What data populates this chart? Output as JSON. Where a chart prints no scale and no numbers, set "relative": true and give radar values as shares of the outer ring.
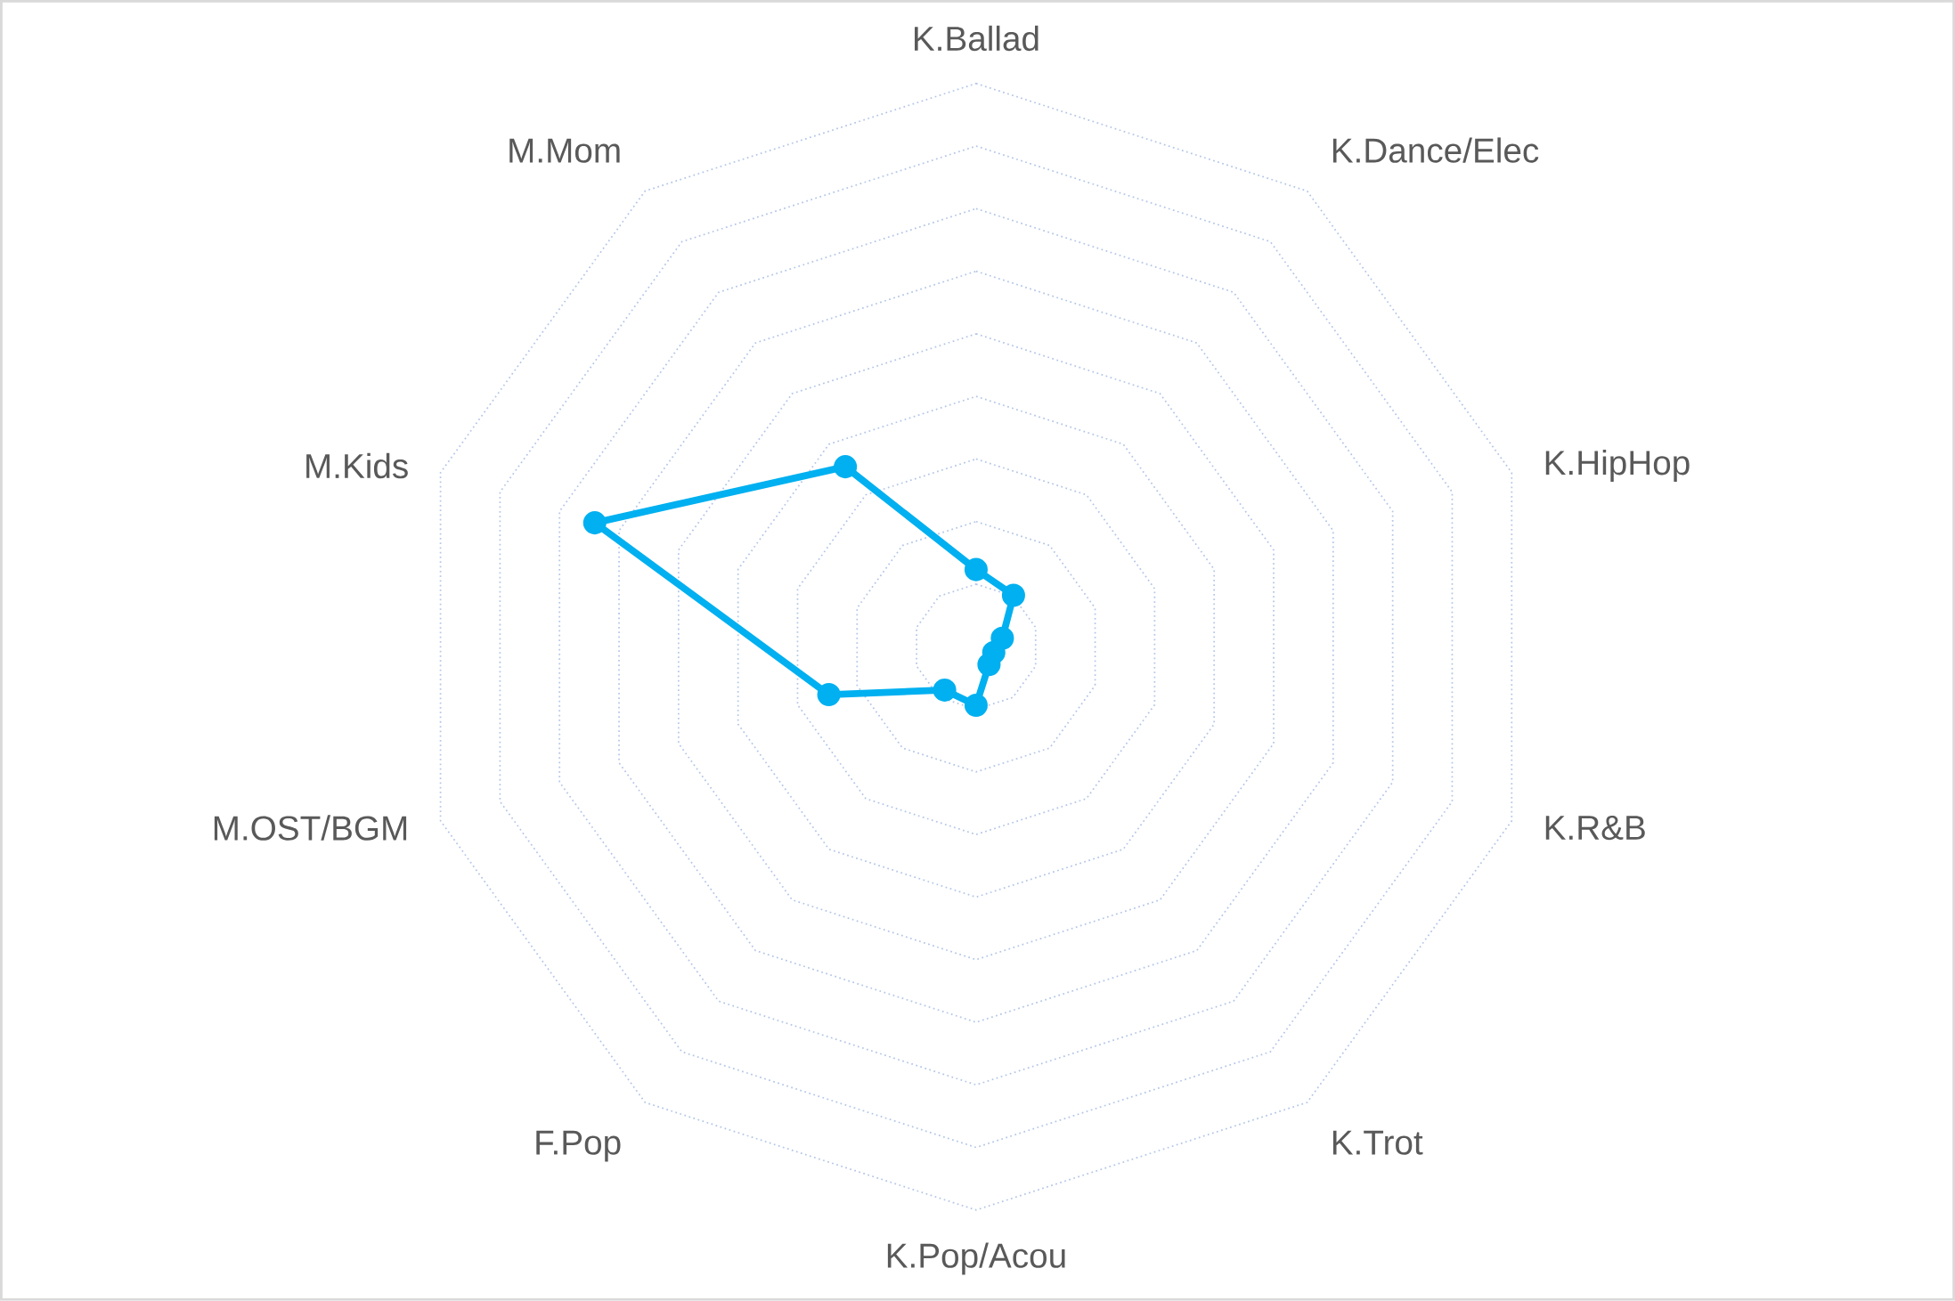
{
  "chart_data": {
    "type": "radar",
    "relative": true,
    "grid": true,
    "marker": "circle",
    "line_style": "solid",
    "categories": [
      "K.Ballad",
      "K.Dance/Elec",
      "K.HipHop",
      "K.R&B",
      "K.Trot",
      "K.Pop/Acou",
      "F.Pop",
      "M.OST/BGM",
      "M.Kids",
      "M.Mom"
    ],
    "series": [
      {
        "color": "#00b0f0",
        "values": [
          0.137,
          0.113,
          0.049,
          0.033,
          0.039,
          0.104,
          0.095,
          0.275,
          0.712,
          0.395
        ]
      }
    ]
  }
}
